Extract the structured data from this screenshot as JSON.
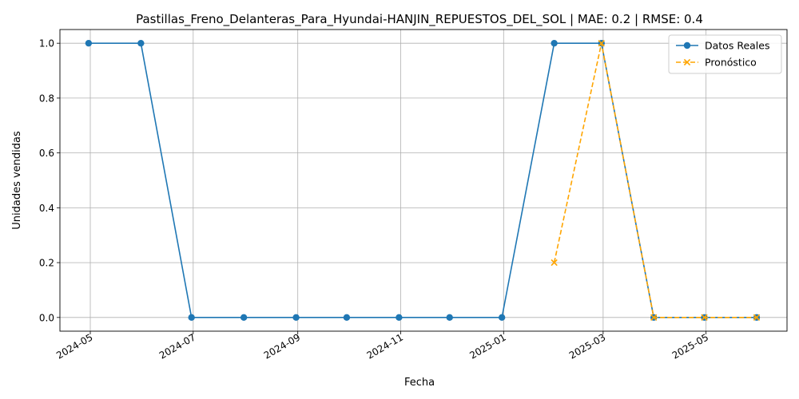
{
  "chart_data": {
    "type": "line",
    "title": "Pastillas_Freno_Delanteras_Para_Hyundai-HANJIN_REPUESTOS_DEL_SOL | MAE: 0.2 | RMSE: 0.4",
    "xlabel": "Fecha",
    "ylabel": "Unidades vendidas",
    "xlim": [
      "2024-04-13",
      "2025-06-18"
    ],
    "ylim": [
      -0.05,
      1.05
    ],
    "x_ticks": [
      "2024-05",
      "2024-07",
      "2024-09",
      "2024-11",
      "2025-01",
      "2025-03",
      "2025-05"
    ],
    "y_ticks": [
      "0.0",
      "0.2",
      "0.4",
      "0.6",
      "0.8",
      "1.0"
    ],
    "grid": true,
    "legend_position": "top-right",
    "series": [
      {
        "name": "Datos Reales",
        "color": "#1f77b4",
        "marker": "circle",
        "linestyle": "solid",
        "points": [
          {
            "x": "2024-04-30",
            "y": 1
          },
          {
            "x": "2024-05-31",
            "y": 1
          },
          {
            "x": "2024-06-30",
            "y": 0
          },
          {
            "x": "2024-07-31",
            "y": 0
          },
          {
            "x": "2024-08-31",
            "y": 0
          },
          {
            "x": "2024-09-30",
            "y": 0
          },
          {
            "x": "2024-10-31",
            "y": 0
          },
          {
            "x": "2024-11-30",
            "y": 0
          },
          {
            "x": "2024-12-31",
            "y": 0
          },
          {
            "x": "2025-01-31",
            "y": 1
          },
          {
            "x": "2025-02-28",
            "y": 1
          },
          {
            "x": "2025-03-31",
            "y": 0
          },
          {
            "x": "2025-04-30",
            "y": 0
          },
          {
            "x": "2025-05-31",
            "y": 0
          }
        ]
      },
      {
        "name": "Pronóstico",
        "color": "#ffa500",
        "marker": "x",
        "linestyle": "dashed",
        "points": [
          {
            "x": "2025-01-31",
            "y": 0.2
          },
          {
            "x": "2025-02-28",
            "y": 1
          },
          {
            "x": "2025-03-31",
            "y": 0
          },
          {
            "x": "2025-04-30",
            "y": 0
          },
          {
            "x": "2025-05-31",
            "y": 0
          }
        ]
      }
    ]
  }
}
